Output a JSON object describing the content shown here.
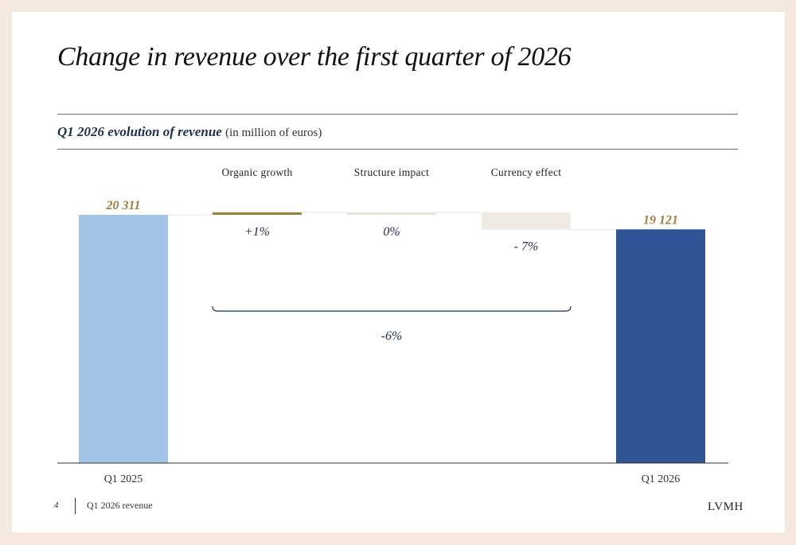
{
  "slide": {
    "title": "Change in revenue over the first quarter of 2026",
    "subtitle_main": "Q1 2026 evolution of revenue",
    "subtitle_unit": "(in million of euros)",
    "footer_page": "4",
    "footer_text": "Q1 2026 revenue",
    "footer_logo": "LVMH"
  },
  "chart_data": {
    "type": "waterfall",
    "title": "Q1 2026 evolution of revenue",
    "unit": "(in million of euros)",
    "start": {
      "label": "Q1 2025",
      "value": 20311,
      "value_label": "20 311",
      "color": "#a2c4e6"
    },
    "steps": [
      {
        "label": "Organic growth",
        "percent_label": "+1%",
        "change_pct": 1,
        "color": "#a07f3c"
      },
      {
        "label": "Structure impact",
        "percent_label": "0%",
        "change_pct": 0,
        "color": "#e8e2da"
      },
      {
        "label": "Currency effect",
        "percent_label": "- 7%",
        "change_pct": -7,
        "color": "#f1ebe5"
      }
    ],
    "end": {
      "label": "Q1 2026",
      "value": 19121,
      "value_label": "19 121",
      "color": "#2f5597"
    },
    "total_change": {
      "label": "-6%",
      "change_pct": -6
    },
    "ylim": [
      0,
      20311
    ],
    "colors": {
      "value_label": "#a07f3c",
      "percent_label": "#1d2f4f",
      "axis": "#333333",
      "bracket": "#1d2f4f"
    }
  }
}
